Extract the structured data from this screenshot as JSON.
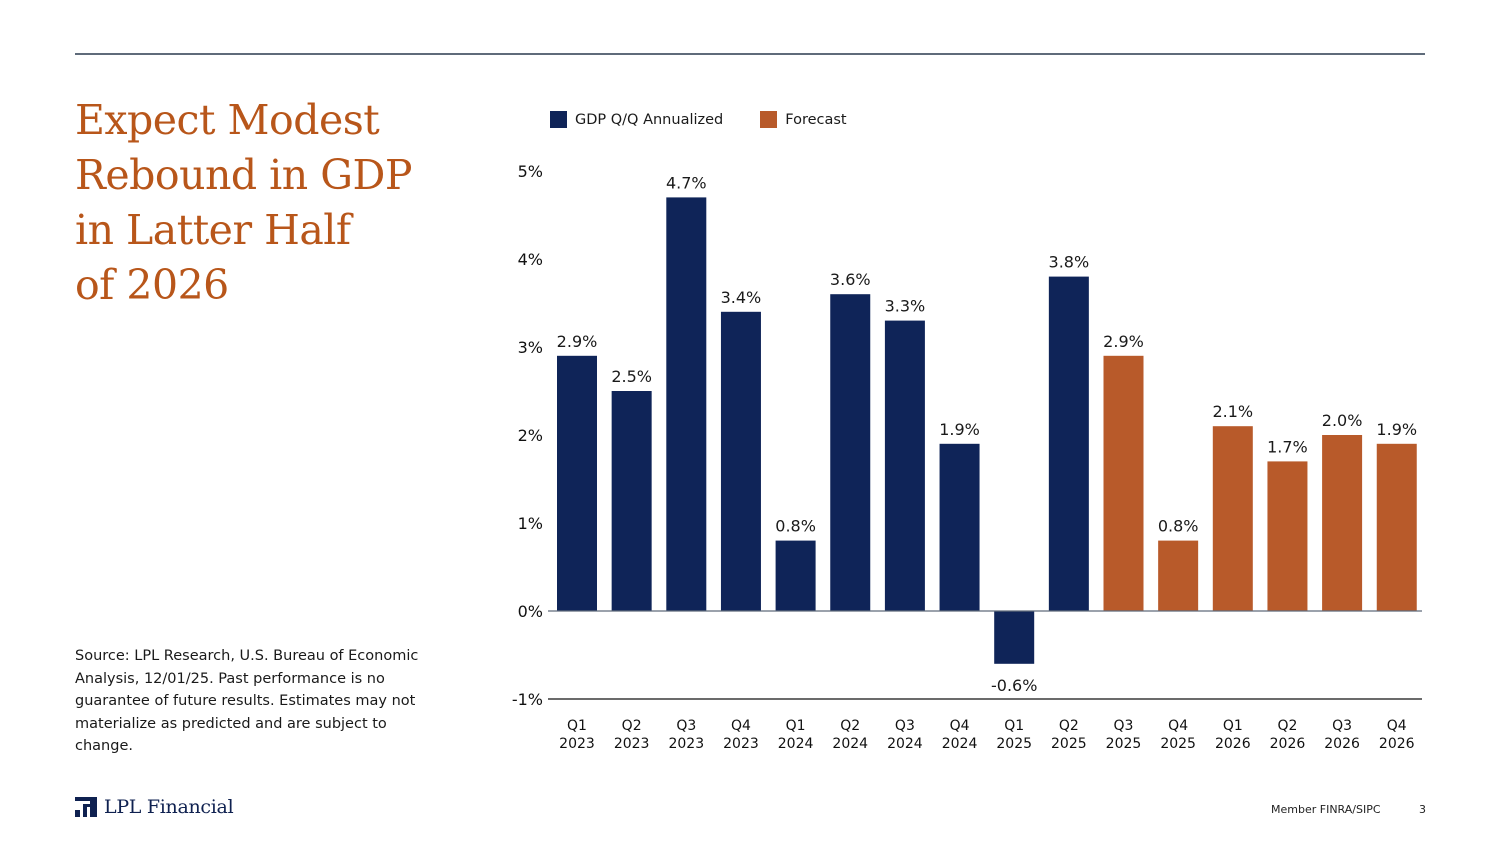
{
  "slide": {
    "title_lines": [
      "Expect Modest",
      "Rebound in GDP",
      "in Latter Half",
      "of 2026"
    ],
    "source_note": "Source: LPL Research, U.S. Bureau of Economic Analysis, 12/01/25. Past performance is no guarantee of future results. Estimates may not materialize as predicted and are subject to change.",
    "logo_text": "LPL Financial",
    "logo_icon": "lpl-logo-icon",
    "footer_member": "Member FINRA/SIPC",
    "page_number": "3"
  },
  "colors": {
    "actual": "#0f2458",
    "forecast": "#b85a2a",
    "title": "#b8561a"
  },
  "chart_data": {
    "type": "bar",
    "title": "",
    "xlabel": "",
    "ylabel": "",
    "ylim": [
      -1,
      5
    ],
    "yticks": [
      -1,
      0,
      1,
      2,
      3,
      4,
      5
    ],
    "ytick_labels": [
      "-1%",
      "0%",
      "1%",
      "2%",
      "3%",
      "4%",
      "5%"
    ],
    "grid": false,
    "legend_position": "top",
    "legend": [
      {
        "name": "GDP Q/Q Annualized",
        "color_key": "actual"
      },
      {
        "name": "Forecast",
        "color_key": "forecast"
      }
    ],
    "categories": [
      [
        "Q1",
        "2023"
      ],
      [
        "Q2",
        "2023"
      ],
      [
        "Q3",
        "2023"
      ],
      [
        "Q4",
        "2023"
      ],
      [
        "Q1",
        "2024"
      ],
      [
        "Q2",
        "2024"
      ],
      [
        "Q3",
        "2024"
      ],
      [
        "Q4",
        "2024"
      ],
      [
        "Q1",
        "2025"
      ],
      [
        "Q2",
        "2025"
      ],
      [
        "Q3",
        "2025"
      ],
      [
        "Q4",
        "2025"
      ],
      [
        "Q1",
        "2026"
      ],
      [
        "Q2",
        "2026"
      ],
      [
        "Q3",
        "2026"
      ],
      [
        "Q4",
        "2026"
      ]
    ],
    "series": [
      {
        "name": "GDP Q/Q Annualized / Forecast",
        "values": [
          2.9,
          2.5,
          4.7,
          3.4,
          0.8,
          3.6,
          3.3,
          1.9,
          -0.6,
          3.8,
          2.9,
          0.8,
          2.1,
          1.7,
          2.0,
          1.9
        ],
        "labels": [
          "2.9%",
          "2.5%",
          "4.7%",
          "3.4%",
          "0.8%",
          "3.6%",
          "3.3%",
          "1.9%",
          "-0.6%",
          "3.8%",
          "2.9%",
          "0.8%",
          "2.1%",
          "1.7%",
          "2.0%",
          "1.9%"
        ],
        "kind": [
          "actual",
          "actual",
          "actual",
          "actual",
          "actual",
          "actual",
          "actual",
          "actual",
          "actual",
          "actual",
          "forecast",
          "forecast",
          "forecast",
          "forecast",
          "forecast",
          "forecast"
        ]
      }
    ]
  }
}
